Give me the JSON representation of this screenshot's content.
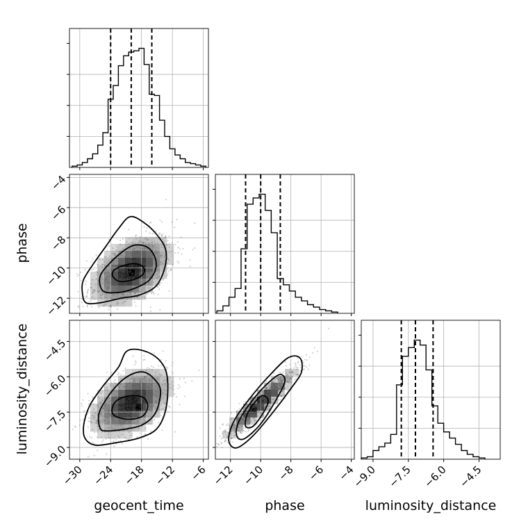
{
  "chart_data": {
    "type": "corner",
    "parameters": [
      "geocent_time",
      "phase",
      "luminosity_distance"
    ],
    "quantile_style": "dashed",
    "grid": true,
    "axes": {
      "geocent_time": {
        "range": [
          -32,
          -5
        ],
        "ticks": [
          -30,
          -24,
          -18,
          -12,
          -6
        ],
        "tick_labels": [
          "−30",
          "−24",
          "−18",
          "−12",
          "−6"
        ]
      },
      "phase": {
        "range": [
          -13.0,
          -3.8
        ],
        "ticks": [
          -12,
          -10,
          -8,
          -6,
          -4
        ],
        "tick_labels": [
          "−12",
          "−10",
          "−8",
          "−6",
          "−4"
        ]
      },
      "luminosity_distance": {
        "range": [
          -9.5,
          -3.6
        ],
        "ticks": [
          -9.0,
          -7.5,
          -6.0,
          -4.5
        ],
        "tick_labels": [
          "−9.0",
          "−7.5",
          "−6.0",
          "−4.5"
        ]
      }
    },
    "marginals": [
      {
        "parameter": "geocent_time",
        "quantiles": [
          -24.0,
          -20.0,
          -16.0
        ],
        "bins": [
          {
            "x0": -31.5,
            "x1": -30.5,
            "v": 0.01
          },
          {
            "x0": -30.5,
            "x1": -29.5,
            "v": 0.02
          },
          {
            "x0": -29.5,
            "x1": -28.5,
            "v": 0.04
          },
          {
            "x0": -28.5,
            "x1": -27.5,
            "v": 0.07
          },
          {
            "x0": -27.5,
            "x1": -26.5,
            "v": 0.11
          },
          {
            "x0": -26.5,
            "x1": -25.5,
            "v": 0.18
          },
          {
            "x0": -25.5,
            "x1": -24.5,
            "v": 0.28
          },
          {
            "x0": -24.5,
            "x1": -23.5,
            "v": 0.55
          },
          {
            "x0": -23.5,
            "x1": -22.5,
            "v": 0.66
          },
          {
            "x0": -22.5,
            "x1": -21.5,
            "v": 0.82
          },
          {
            "x0": -21.5,
            "x1": -20.5,
            "v": 0.9
          },
          {
            "x0": -20.5,
            "x1": -19.5,
            "v": 0.93
          },
          {
            "x0": -19.5,
            "x1": -18.5,
            "v": 0.94
          },
          {
            "x0": -18.5,
            "x1": -17.5,
            "v": 0.96
          },
          {
            "x0": -17.5,
            "x1": -16.5,
            "v": 0.83
          },
          {
            "x0": -16.5,
            "x1": -15.5,
            "v": 0.59
          },
          {
            "x0": -15.5,
            "x1": -14.5,
            "v": 0.58
          },
          {
            "x0": -14.5,
            "x1": -13.5,
            "v": 0.38
          },
          {
            "x0": -13.5,
            "x1": -12.5,
            "v": 0.25
          },
          {
            "x0": -12.5,
            "x1": -11.5,
            "v": 0.15
          },
          {
            "x0": -11.5,
            "x1": -10.5,
            "v": 0.1
          },
          {
            "x0": -10.5,
            "x1": -9.5,
            "v": 0.07
          },
          {
            "x0": -9.5,
            "x1": -8.5,
            "v": 0.04
          },
          {
            "x0": -8.5,
            "x1": -7.5,
            "v": 0.03
          },
          {
            "x0": -7.5,
            "x1": -6.5,
            "v": 0.02
          },
          {
            "x0": -6.5,
            "x1": -5.5,
            "v": 0.01
          }
        ]
      },
      {
        "parameter": "phase",
        "quantiles": [
          -11.0,
          -10.0,
          -8.7
        ],
        "bins": [
          {
            "x0": -12.9,
            "x1": -12.5,
            "v": 0.02
          },
          {
            "x0": -12.5,
            "x1": -12.1,
            "v": 0.06
          },
          {
            "x0": -12.1,
            "x1": -11.7,
            "v": 0.13
          },
          {
            "x0": -11.7,
            "x1": -11.3,
            "v": 0.2
          },
          {
            "x0": -11.3,
            "x1": -10.9,
            "v": 0.52
          },
          {
            "x0": -10.9,
            "x1": -10.5,
            "v": 0.88
          },
          {
            "x0": -10.5,
            "x1": -10.1,
            "v": 0.93
          },
          {
            "x0": -10.1,
            "x1": -9.7,
            "v": 0.96
          },
          {
            "x0": -9.7,
            "x1": -9.3,
            "v": 0.83
          },
          {
            "x0": -9.3,
            "x1": -8.9,
            "v": 0.65
          },
          {
            "x0": -8.9,
            "x1": -8.5,
            "v": 0.28
          },
          {
            "x0": -8.5,
            "x1": -8.1,
            "v": 0.23
          },
          {
            "x0": -8.1,
            "x1": -7.7,
            "v": 0.18
          },
          {
            "x0": -7.7,
            "x1": -7.3,
            "v": 0.13
          },
          {
            "x0": -7.3,
            "x1": -6.9,
            "v": 0.1
          },
          {
            "x0": -6.9,
            "x1": -6.5,
            "v": 0.07
          },
          {
            "x0": -6.5,
            "x1": -6.1,
            "v": 0.05
          },
          {
            "x0": -6.1,
            "x1": -5.7,
            "v": 0.03
          },
          {
            "x0": -5.7,
            "x1": -5.3,
            "v": 0.02
          },
          {
            "x0": -5.3,
            "x1": -4.9,
            "v": 0.01
          }
        ]
      },
      {
        "parameter": "luminosity_distance",
        "quantiles": [
          -7.8,
          -7.2,
          -6.45
        ],
        "bins": [
          {
            "x0": -9.5,
            "x1": -9.25,
            "v": 0.01
          },
          {
            "x0": -9.25,
            "x1": -9.0,
            "v": 0.02
          },
          {
            "x0": -9.0,
            "x1": -8.75,
            "v": 0.07
          },
          {
            "x0": -8.75,
            "x1": -8.5,
            "v": 0.1
          },
          {
            "x0": -8.5,
            "x1": -8.25,
            "v": 0.13
          },
          {
            "x0": -8.25,
            "x1": -8.0,
            "v": 0.2
          },
          {
            "x0": -8.0,
            "x1": -7.75,
            "v": 0.6
          },
          {
            "x0": -7.75,
            "x1": -7.5,
            "v": 0.83
          },
          {
            "x0": -7.5,
            "x1": -7.25,
            "v": 0.9
          },
          {
            "x0": -7.25,
            "x1": -7.0,
            "v": 0.96
          },
          {
            "x0": -7.0,
            "x1": -6.75,
            "v": 0.92
          },
          {
            "x0": -6.75,
            "x1": -6.5,
            "v": 0.72
          },
          {
            "x0": -6.5,
            "x1": -6.25,
            "v": 0.43
          },
          {
            "x0": -6.25,
            "x1": -6.0,
            "v": 0.29
          },
          {
            "x0": -6.0,
            "x1": -5.75,
            "v": 0.22
          },
          {
            "x0": -5.75,
            "x1": -5.5,
            "v": 0.17
          },
          {
            "x0": -5.5,
            "x1": -5.25,
            "v": 0.12
          },
          {
            "x0": -5.25,
            "x1": -5.0,
            "v": 0.07
          },
          {
            "x0": -5.0,
            "x1": -4.75,
            "v": 0.04
          },
          {
            "x0": -4.75,
            "x1": -4.5,
            "v": 0.02
          },
          {
            "x0": -4.5,
            "x1": -4.25,
            "v": 0.01
          }
        ]
      }
    ],
    "joints": [
      {
        "x": "geocent_time",
        "y": "phase",
        "mean": [
          -20.0,
          -10.2
        ],
        "sd": [
          3.8,
          1.15
        ],
        "corr": 0.45,
        "peak": [
          -20.0,
          -10.3
        ],
        "contours": [
          [
            [
              -29.5,
              -11.6
            ],
            [
              -28.8,
              -12.3
            ],
            [
              -26.0,
              -12.3
            ],
            [
              -22.0,
              -12.0
            ],
            [
              -18.5,
              -11.8
            ],
            [
              -15.2,
              -11.2
            ],
            [
              -13.5,
              -10.0
            ],
            [
              -13.3,
              -8.8
            ],
            [
              -15.0,
              -7.8
            ],
            [
              -17.5,
              -7.0
            ],
            [
              -20.2,
              -6.6
            ],
            [
              -22.5,
              -7.4
            ],
            [
              -25.0,
              -8.6
            ],
            [
              -27.5,
              -9.8
            ],
            [
              -29.3,
              -10.8
            ]
          ],
          [
            [
              -26.0,
              -11.2
            ],
            [
              -25.0,
              -11.6
            ],
            [
              -22.0,
              -11.6
            ],
            [
              -19.0,
              -11.3
            ],
            [
              -16.5,
              -10.8
            ],
            [
              -15.2,
              -10.0
            ],
            [
              -15.5,
              -9.2
            ],
            [
              -17.0,
              -8.6
            ],
            [
              -19.5,
              -8.5
            ],
            [
              -22.0,
              -9.0
            ],
            [
              -24.5,
              -9.8
            ],
            [
              -26.0,
              -10.5
            ]
          ],
          [
            [
              -23.5,
              -10.6
            ],
            [
              -22.0,
              -10.9
            ],
            [
              -19.0,
              -10.7
            ],
            [
              -17.5,
              -10.3
            ],
            [
              -17.8,
              -9.9
            ],
            [
              -19.5,
              -9.7
            ],
            [
              -22.0,
              -9.9
            ],
            [
              -23.5,
              -10.2
            ]
          ]
        ]
      },
      {
        "x": "geocent_time",
        "y": "luminosity_distance",
        "mean": [
          -20.0,
          -7.1
        ],
        "sd": [
          3.8,
          0.7
        ],
        "corr": 0.45,
        "peak": [
          -18.5,
          -7.3
        ],
        "contours": [
          [
            [
              -29.0,
              -8.6
            ],
            [
              -27.0,
              -8.9
            ],
            [
              -23.0,
              -8.8
            ],
            [
              -18.5,
              -8.6
            ],
            [
              -15.0,
              -8.2
            ],
            [
              -13.2,
              -7.3
            ],
            [
              -13.0,
              -6.0
            ],
            [
              -14.5,
              -5.3
            ],
            [
              -17.5,
              -4.9
            ],
            [
              -20.8,
              -4.9
            ],
            [
              -22.5,
              -5.6
            ],
            [
              -25.5,
              -6.4
            ],
            [
              -28.0,
              -7.2
            ],
            [
              -29.2,
              -8.0
            ]
          ],
          [
            [
              -26.0,
              -8.2
            ],
            [
              -24.5,
              -8.3
            ],
            [
              -20.5,
              -8.2
            ],
            [
              -17.5,
              -8.0
            ],
            [
              -15.2,
              -7.5
            ],
            [
              -14.3,
              -6.6
            ],
            [
              -15.5,
              -6.1
            ],
            [
              -17.5,
              -5.8
            ],
            [
              -20.0,
              -5.9
            ],
            [
              -22.5,
              -6.3
            ],
            [
              -25.0,
              -7.0
            ],
            [
              -26.3,
              -7.6
            ]
          ],
          [
            [
              -23.5,
              -7.6
            ],
            [
              -21.0,
              -7.8
            ],
            [
              -18.0,
              -7.7
            ],
            [
              -16.8,
              -7.3
            ],
            [
              -17.5,
              -6.9
            ],
            [
              -19.5,
              -6.8
            ],
            [
              -22.0,
              -6.9
            ],
            [
              -23.5,
              -7.2
            ]
          ]
        ]
      },
      {
        "x": "phase",
        "y": "luminosity_distance",
        "mean": [
          -10.0,
          -7.1
        ],
        "sd": [
          1.15,
          0.7
        ],
        "corr": 0.93,
        "peak": [
          -10.5,
          -7.4
        ],
        "contours": [
          [
            [
              -12.0,
              -8.9
            ],
            [
              -11.5,
              -9.0
            ],
            [
              -10.5,
              -8.5
            ],
            [
              -9.3,
              -7.6
            ],
            [
              -8.0,
              -6.5
            ],
            [
              -7.3,
              -5.8
            ],
            [
              -7.4,
              -5.2
            ],
            [
              -8.2,
              -5.2
            ],
            [
              -9.5,
              -6.0
            ],
            [
              -10.7,
              -6.9
            ],
            [
              -11.7,
              -7.8
            ],
            [
              -12.1,
              -8.5
            ]
          ],
          [
            [
              -11.5,
              -8.6
            ],
            [
              -11.0,
              -8.6
            ],
            [
              -10.0,
              -8.0
            ],
            [
              -9.0,
              -7.0
            ],
            [
              -8.4,
              -6.2
            ],
            [
              -8.7,
              -5.9
            ],
            [
              -9.4,
              -6.2
            ],
            [
              -10.3,
              -6.8
            ],
            [
              -11.2,
              -7.6
            ],
            [
              -11.6,
              -8.2
            ]
          ],
          [
            [
              -11.0,
              -8.1
            ],
            [
              -10.5,
              -8.1
            ],
            [
              -9.8,
              -7.5
            ],
            [
              -9.5,
              -7.0
            ],
            [
              -9.9,
              -6.8
            ],
            [
              -10.4,
              -7.1
            ],
            [
              -10.9,
              -7.6
            ]
          ]
        ]
      }
    ]
  }
}
